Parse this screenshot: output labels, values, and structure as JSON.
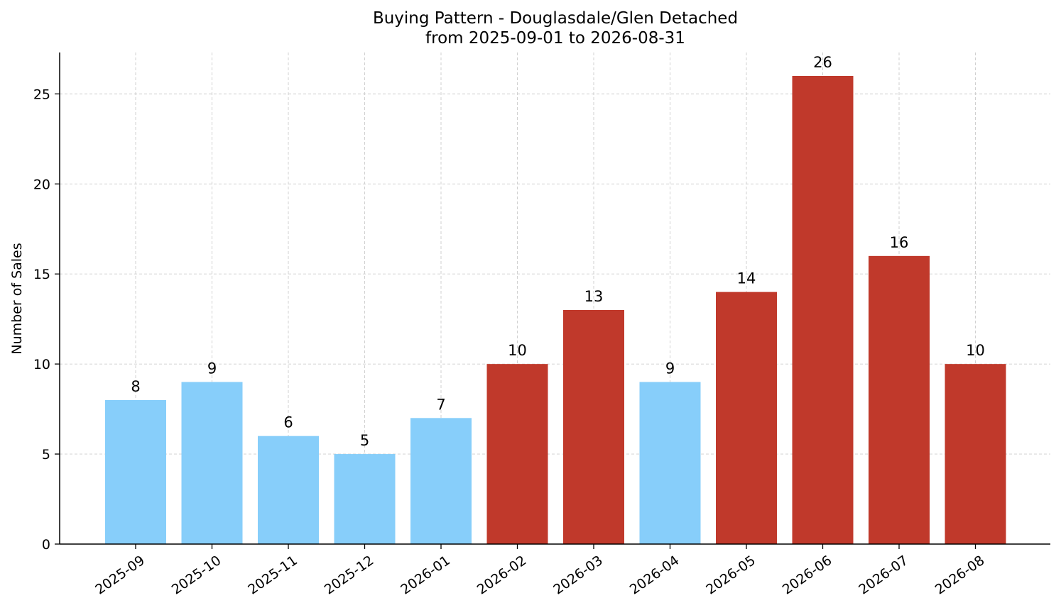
{
  "chart_data": {
    "type": "bar",
    "title_line1": "Buying Pattern - Douglasdale/Glen Detached",
    "title_line2": "from 2025-09-01 to 2026-08-31",
    "xlabel": "",
    "ylabel": "Number of Sales",
    "categories": [
      "2025-09",
      "2025-10",
      "2025-11",
      "2025-12",
      "2026-01",
      "2026-02",
      "2026-03",
      "2026-04",
      "2026-05",
      "2026-06",
      "2026-07",
      "2026-08"
    ],
    "values": [
      8,
      9,
      6,
      5,
      7,
      10,
      13,
      9,
      14,
      26,
      16,
      10
    ],
    "highlighted": [
      false,
      false,
      false,
      false,
      false,
      true,
      true,
      false,
      true,
      true,
      true,
      true
    ],
    "ylim": [
      0,
      27.3
    ],
    "yticks": [
      0,
      5,
      10,
      15,
      20,
      25
    ],
    "grid": true,
    "legend": "none",
    "colors": {
      "normal": "#87CEFA",
      "highlight": "#C0392B"
    }
  }
}
